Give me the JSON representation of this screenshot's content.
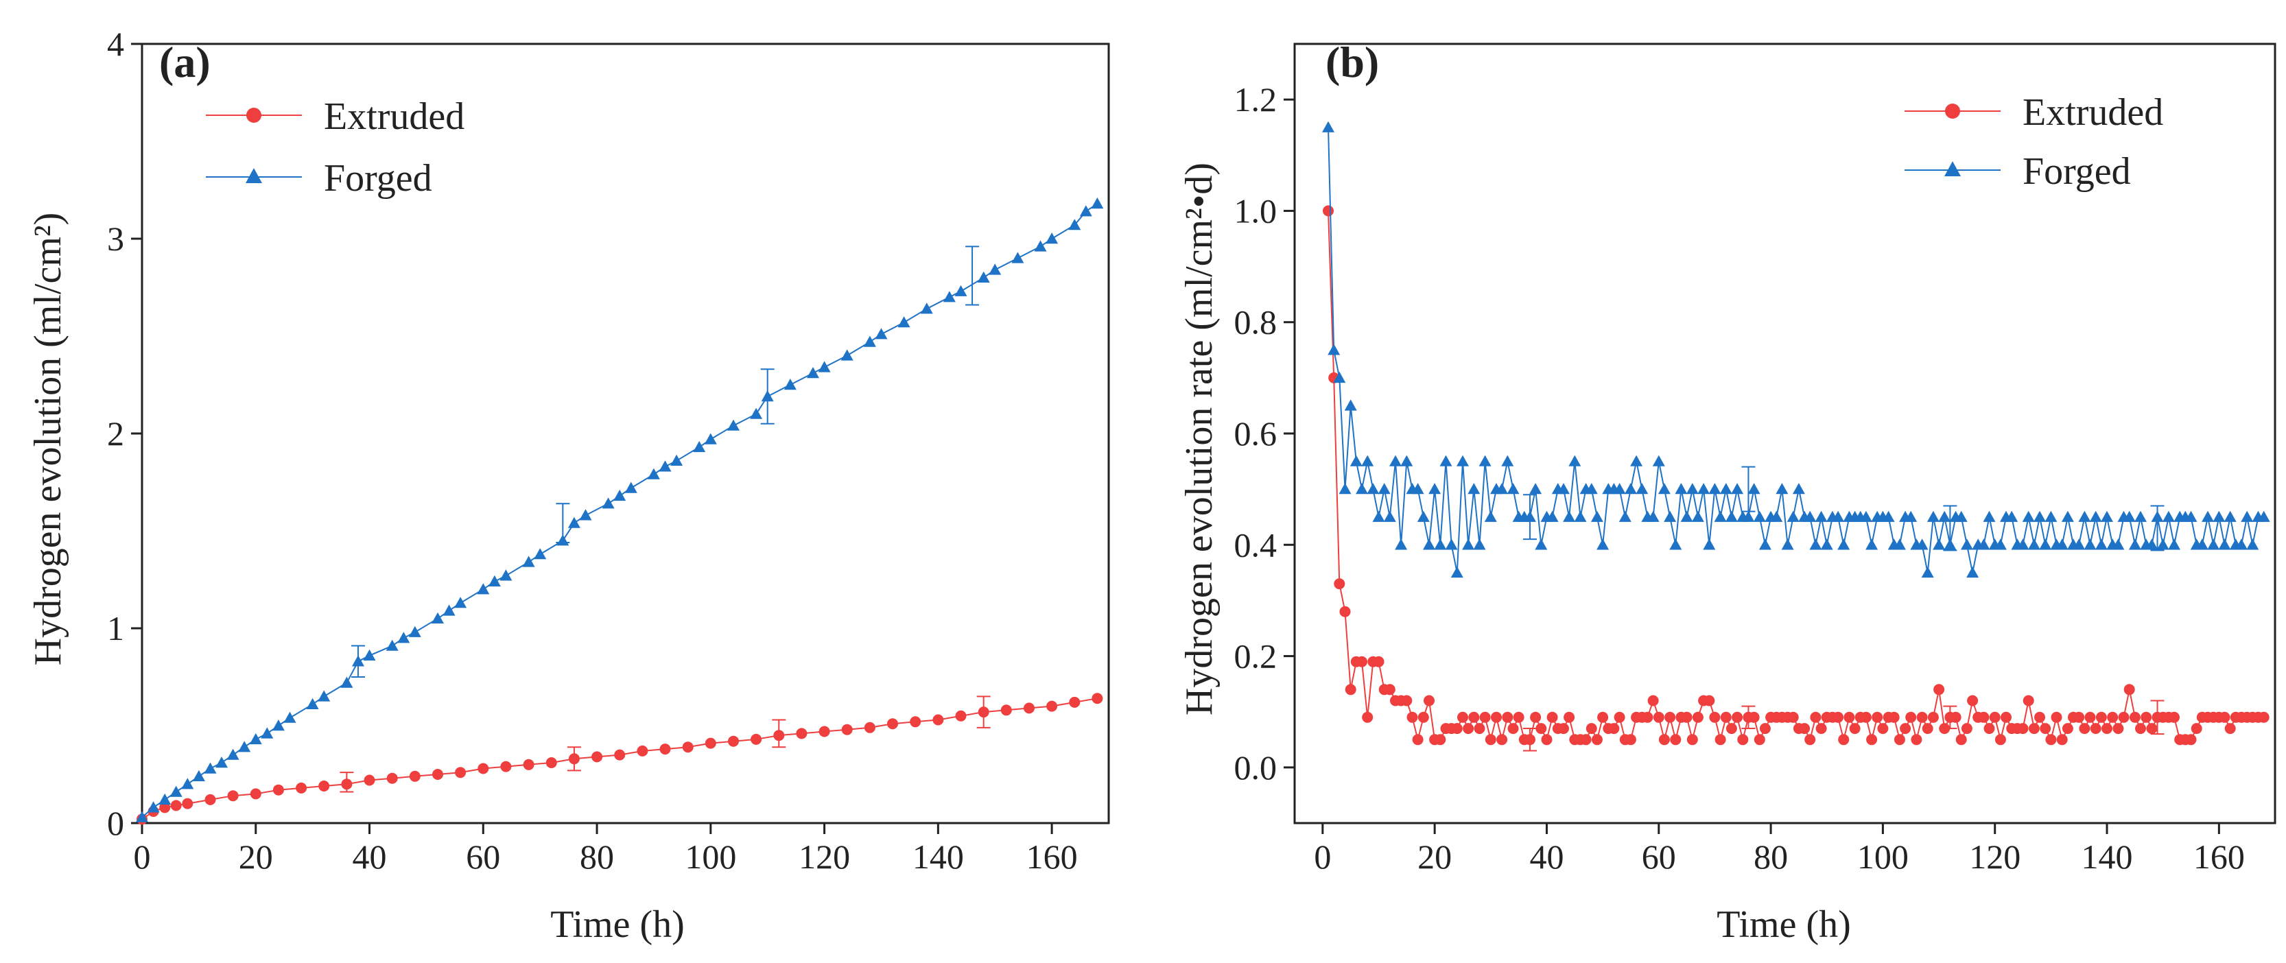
{
  "colors": {
    "extruded": "#ef3e3e",
    "forged": "#1f73c6",
    "axis": "#222222"
  },
  "chart_data": [
    {
      "panel": "(a)",
      "type": "line",
      "xlabel": "Time (h)",
      "ylabel": "Hydrogen evolution (ml/cm²)",
      "xlim": [
        0,
        170
      ],
      "ylim": [
        0,
        4
      ],
      "xticks": [
        0,
        20,
        40,
        60,
        80,
        100,
        120,
        140,
        160
      ],
      "yticks": [
        0,
        1,
        2,
        3,
        4
      ],
      "legend_position": "top-left",
      "series": [
        {
          "name": "Extruded",
          "marker": "circle",
          "color": "#ef3e3e",
          "x": [
            0,
            2,
            4,
            6,
            8,
            12,
            16,
            20,
            24,
            28,
            32,
            36,
            40,
            44,
            48,
            52,
            56,
            60,
            64,
            68,
            72,
            76,
            80,
            84,
            88,
            92,
            96,
            100,
            104,
            108,
            112,
            116,
            120,
            124,
            128,
            132,
            136,
            140,
            144,
            148,
            152,
            156,
            160,
            164,
            168
          ],
          "y": [
            0.02,
            0.06,
            0.08,
            0.09,
            0.1,
            0.12,
            0.14,
            0.15,
            0.17,
            0.18,
            0.19,
            0.2,
            0.22,
            0.23,
            0.24,
            0.25,
            0.26,
            0.28,
            0.29,
            0.3,
            0.31,
            0.33,
            0.34,
            0.35,
            0.37,
            0.38,
            0.39,
            0.41,
            0.42,
            0.43,
            0.45,
            0.46,
            0.47,
            0.48,
            0.49,
            0.51,
            0.52,
            0.53,
            0.55,
            0.57,
            0.58,
            0.59,
            0.6,
            0.62,
            0.64
          ],
          "error_bars": [
            {
              "x": 36,
              "y": 0.21,
              "err": 0.05
            },
            {
              "x": 76,
              "y": 0.33,
              "err": 0.06
            },
            {
              "x": 112,
              "y": 0.46,
              "err": 0.07
            },
            {
              "x": 148,
              "y": 0.57,
              "err": 0.08
            }
          ]
        },
        {
          "name": "Forged",
          "marker": "triangle",
          "color": "#1f73c6",
          "x": [
            0,
            2,
            4,
            6,
            8,
            10,
            12,
            14,
            16,
            18,
            20,
            22,
            24,
            26,
            30,
            32,
            36,
            38,
            40,
            44,
            46,
            48,
            52,
            54,
            56,
            60,
            62,
            64,
            68,
            70,
            74,
            76,
            78,
            82,
            84,
            86,
            90,
            92,
            94,
            98,
            100,
            104,
            108,
            110,
            114,
            118,
            120,
            124,
            128,
            130,
            134,
            138,
            142,
            144,
            148,
            150,
            154,
            158,
            160,
            164,
            166,
            168
          ],
          "y": [
            0.03,
            0.08,
            0.12,
            0.16,
            0.2,
            0.24,
            0.28,
            0.31,
            0.35,
            0.39,
            0.43,
            0.46,
            0.5,
            0.54,
            0.61,
            0.65,
            0.72,
            0.83,
            0.86,
            0.91,
            0.95,
            0.98,
            1.05,
            1.09,
            1.13,
            1.2,
            1.24,
            1.27,
            1.34,
            1.38,
            1.45,
            1.54,
            1.58,
            1.64,
            1.68,
            1.72,
            1.79,
            1.83,
            1.86,
            1.93,
            1.97,
            2.04,
            2.1,
            2.19,
            2.25,
            2.31,
            2.34,
            2.4,
            2.47,
            2.51,
            2.57,
            2.64,
            2.7,
            2.73,
            2.8,
            2.84,
            2.9,
            2.96,
            3.0,
            3.07,
            3.14,
            3.18
          ],
          "error_bars": [
            {
              "x": 38,
              "y": 0.83,
              "err": 0.08
            },
            {
              "x": 74,
              "y": 1.54,
              "err": 0.1
            },
            {
              "x": 110,
              "y": 2.19,
              "err": 0.14
            },
            {
              "x": 146,
              "y": 2.81,
              "err": 0.15
            }
          ]
        }
      ]
    },
    {
      "panel": "(b)",
      "type": "line",
      "xlabel": "Time (h)",
      "ylabel": "Hydrogen evolution rate (ml/cm²•d)",
      "xlim": [
        -5,
        170
      ],
      "ylim": [
        -0.1,
        1.3
      ],
      "xticks": [
        0,
        20,
        40,
        60,
        80,
        100,
        120,
        140,
        160
      ],
      "yticks": [
        0.0,
        0.2,
        0.4,
        0.6,
        0.8,
        1.0,
        1.2
      ],
      "legend_position": "top-right",
      "series": [
        {
          "name": "Extruded",
          "marker": "circle",
          "color": "#ef3e3e",
          "x": [
            1,
            2,
            3,
            4,
            5,
            6,
            7,
            8,
            9,
            10,
            11,
            12,
            13,
            14,
            15,
            16,
            17,
            18,
            19,
            20,
            21,
            22,
            23,
            24,
            25,
            26,
            27,
            28,
            29,
            30,
            31,
            32,
            33,
            34,
            35,
            36,
            37,
            38,
            39,
            40,
            41,
            42,
            43,
            44,
            45,
            46,
            47,
            48,
            49,
            50,
            51,
            52,
            53,
            54,
            55,
            56,
            57,
            58,
            59,
            60,
            61,
            62,
            63,
            64,
            65,
            66,
            67,
            68,
            69,
            70,
            71,
            72,
            73,
            74,
            75,
            76,
            77,
            78,
            79,
            80,
            81,
            82,
            83,
            84,
            85,
            86,
            87,
            88,
            89,
            90,
            91,
            92,
            93,
            94,
            95,
            96,
            97,
            98,
            99,
            100,
            101,
            102,
            103,
            104,
            105,
            106,
            107,
            108,
            109,
            110,
            111,
            112,
            113,
            114,
            115,
            116,
            117,
            118,
            119,
            120,
            121,
            122,
            123,
            124,
            125,
            126,
            127,
            128,
            129,
            130,
            131,
            132,
            133,
            134,
            135,
            136,
            137,
            138,
            139,
            140,
            141,
            142,
            143,
            144,
            145,
            146,
            147,
            148,
            149,
            150,
            151,
            152,
            153,
            154,
            155,
            156,
            157,
            158,
            159,
            160,
            161,
            162,
            163,
            164,
            165,
            166,
            167,
            168
          ],
          "y": [
            1.0,
            0.7,
            0.33,
            0.28,
            0.14,
            0.19,
            0.19,
            0.09,
            0.19,
            0.19,
            0.14,
            0.14,
            0.12,
            0.12,
            0.12,
            0.09,
            0.05,
            0.09,
            0.12,
            0.05,
            0.05,
            0.07,
            0.07,
            0.07,
            0.09,
            0.07,
            0.09,
            0.07,
            0.09,
            0.05,
            0.09,
            0.05,
            0.09,
            0.07,
            0.09,
            0.05,
            0.05,
            0.09,
            0.07,
            0.05,
            0.09,
            0.07,
            0.07,
            0.09,
            0.05,
            0.05,
            0.05,
            0.07,
            0.05,
            0.09,
            0.07,
            0.07,
            0.09,
            0.05,
            0.05,
            0.09,
            0.09,
            0.09,
            0.12,
            0.09,
            0.05,
            0.09,
            0.05,
            0.09,
            0.09,
            0.05,
            0.09,
            0.12,
            0.12,
            0.09,
            0.05,
            0.09,
            0.07,
            0.09,
            0.05,
            0.09,
            0.09,
            0.05,
            0.07,
            0.09,
            0.09,
            0.09,
            0.09,
            0.09,
            0.07,
            0.07,
            0.05,
            0.09,
            0.07,
            0.09,
            0.09,
            0.09,
            0.05,
            0.09,
            0.07,
            0.09,
            0.09,
            0.05,
            0.09,
            0.07,
            0.09,
            0.09,
            0.05,
            0.07,
            0.09,
            0.05,
            0.09,
            0.07,
            0.09,
            0.14,
            0.07,
            0.09,
            0.09,
            0.05,
            0.07,
            0.12,
            0.09,
            0.09,
            0.07,
            0.09,
            0.05,
            0.09,
            0.07,
            0.07,
            0.07,
            0.12,
            0.07,
            0.09,
            0.07,
            0.05,
            0.09,
            0.05,
            0.07,
            0.09,
            0.09,
            0.07,
            0.09,
            0.07,
            0.09,
            0.07,
            0.09,
            0.07,
            0.09,
            0.14,
            0.09,
            0.07,
            0.09,
            0.07,
            0.09,
            0.09,
            0.09,
            0.09,
            0.05,
            0.05,
            0.05,
            0.07,
            0.09,
            0.09,
            0.09,
            0.09,
            0.09,
            0.07,
            0.09,
            0.09,
            0.09,
            0.09,
            0.09,
            0.09
          ],
          "error_bars": [
            {
              "x": 37,
              "y": 0.05,
              "err": 0.02
            },
            {
              "x": 76,
              "y": 0.09,
              "err": 0.02
            },
            {
              "x": 112,
              "y": 0.09,
              "err": 0.02
            },
            {
              "x": 149,
              "y": 0.09,
              "err": 0.03
            }
          ]
        },
        {
          "name": "Forged",
          "marker": "triangle",
          "color": "#1f73c6",
          "x": [
            1,
            2,
            3,
            4,
            5,
            6,
            7,
            8,
            9,
            10,
            11,
            12,
            13,
            14,
            15,
            16,
            17,
            18,
            19,
            20,
            21,
            22,
            23,
            24,
            25,
            26,
            27,
            28,
            29,
            30,
            31,
            32,
            33,
            34,
            35,
            36,
            37,
            38,
            39,
            40,
            41,
            42,
            43,
            44,
            45,
            46,
            47,
            48,
            49,
            50,
            51,
            52,
            53,
            54,
            55,
            56,
            57,
            58,
            59,
            60,
            61,
            62,
            63,
            64,
            65,
            66,
            67,
            68,
            69,
            70,
            71,
            72,
            73,
            74,
            75,
            76,
            77,
            78,
            79,
            80,
            81,
            82,
            83,
            84,
            85,
            86,
            87,
            88,
            89,
            90,
            91,
            92,
            93,
            94,
            95,
            96,
            97,
            98,
            99,
            100,
            101,
            102,
            103,
            104,
            105,
            106,
            107,
            108,
            109,
            110,
            111,
            112,
            113,
            114,
            115,
            116,
            117,
            118,
            119,
            120,
            121,
            122,
            123,
            124,
            125,
            126,
            127,
            128,
            129,
            130,
            131,
            132,
            133,
            134,
            135,
            136,
            137,
            138,
            139,
            140,
            141,
            142,
            143,
            144,
            145,
            146,
            147,
            148,
            149,
            150,
            151,
            152,
            153,
            154,
            155,
            156,
            157,
            158,
            159,
            160,
            161,
            162,
            163,
            164,
            165,
            166,
            167,
            168
          ],
          "y": [
            1.15,
            0.75,
            0.7,
            0.5,
            0.65,
            0.55,
            0.5,
            0.55,
            0.5,
            0.45,
            0.5,
            0.45,
            0.55,
            0.4,
            0.55,
            0.5,
            0.5,
            0.45,
            0.4,
            0.5,
            0.4,
            0.55,
            0.4,
            0.35,
            0.55,
            0.4,
            0.5,
            0.4,
            0.55,
            0.45,
            0.5,
            0.5,
            0.55,
            0.5,
            0.45,
            0.45,
            0.45,
            0.5,
            0.4,
            0.45,
            0.45,
            0.5,
            0.5,
            0.45,
            0.55,
            0.45,
            0.5,
            0.5,
            0.45,
            0.4,
            0.5,
            0.5,
            0.5,
            0.45,
            0.5,
            0.55,
            0.5,
            0.45,
            0.45,
            0.55,
            0.5,
            0.45,
            0.4,
            0.5,
            0.45,
            0.5,
            0.45,
            0.5,
            0.4,
            0.5,
            0.45,
            0.5,
            0.45,
            0.5,
            0.45,
            0.45,
            0.5,
            0.45,
            0.4,
            0.45,
            0.45,
            0.5,
            0.4,
            0.45,
            0.5,
            0.45,
            0.45,
            0.4,
            0.45,
            0.4,
            0.45,
            0.45,
            0.4,
            0.45,
            0.45,
            0.45,
            0.45,
            0.4,
            0.45,
            0.45,
            0.45,
            0.4,
            0.4,
            0.45,
            0.45,
            0.4,
            0.4,
            0.35,
            0.45,
            0.4,
            0.45,
            0.4,
            0.45,
            0.45,
            0.4,
            0.35,
            0.4,
            0.4,
            0.45,
            0.4,
            0.4,
            0.45,
            0.45,
            0.4,
            0.4,
            0.45,
            0.4,
            0.45,
            0.4,
            0.45,
            0.4,
            0.4,
            0.45,
            0.4,
            0.4,
            0.45,
            0.4,
            0.45,
            0.4,
            0.45,
            0.4,
            0.4,
            0.45,
            0.45,
            0.4,
            0.45,
            0.4,
            0.4,
            0.45,
            0.4,
            0.45,
            0.4,
            0.45,
            0.45,
            0.45,
            0.4,
            0.4,
            0.45,
            0.4,
            0.45,
            0.4,
            0.45,
            0.4,
            0.4,
            0.45,
            0.4,
            0.45,
            0.45
          ],
          "error_bars": [
            {
              "x": 37,
              "y": 0.45,
              "err": 0.04
            },
            {
              "x": 76,
              "y": 0.5,
              "err": 0.04
            },
            {
              "x": 112,
              "y": 0.43,
              "err": 0.04
            },
            {
              "x": 149,
              "y": 0.43,
              "err": 0.04
            }
          ]
        }
      ]
    }
  ]
}
